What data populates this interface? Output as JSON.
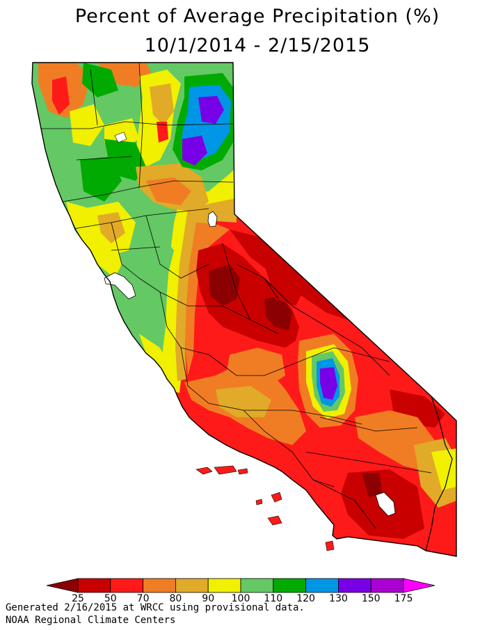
{
  "title": {
    "line1": "Percent of Average Precipitation (%)",
    "line2": "10/1/2014 - 2/15/2015"
  },
  "legend": {
    "colors": [
      "#8b0000",
      "#c80000",
      "#ff1a1a",
      "#f07d23",
      "#e1aa28",
      "#f0f000",
      "#64c864",
      "#00aa00",
      "#0096e6",
      "#7800e6",
      "#aa00d2",
      "#ff00ff"
    ],
    "labels": [
      "25",
      "50",
      "70",
      "80",
      "90",
      "100",
      "110",
      "120",
      "130",
      "150",
      "175"
    ]
  },
  "footer": {
    "line1": "Generated 2/16/2015 at WRCC using provisional data.",
    "line2": "NOAA Regional Climate Centers"
  }
}
